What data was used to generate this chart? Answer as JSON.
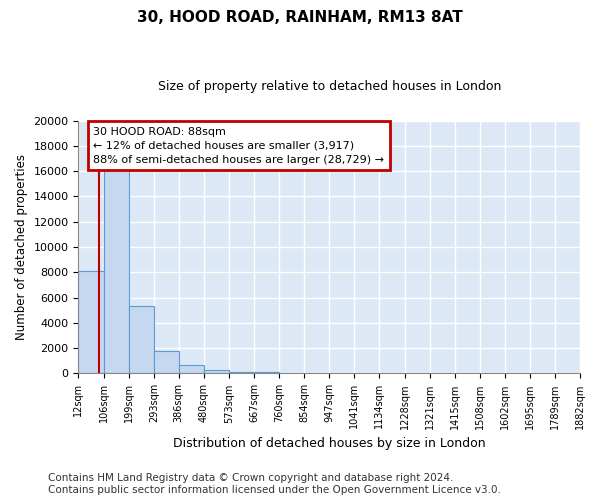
{
  "title": "30, HOOD ROAD, RAINHAM, RM13 8AT",
  "subtitle": "Size of property relative to detached houses in London",
  "xlabel": "Distribution of detached houses by size in London",
  "ylabel": "Number of detached properties",
  "bar_color": "#c5d8f0",
  "bar_edge_color": "#5b9bd5",
  "plot_bg_color": "#dce8f5",
  "fig_bg_color": "#ffffff",
  "grid_color": "#ffffff",
  "vline_color": "#c00000",
  "annotation_text_line1": "30 HOOD ROAD: 88sqm",
  "annotation_text_line2": "← 12% of detached houses are smaller (3,917)",
  "annotation_text_line3": "88% of semi-detached houses are larger (28,729) →",
  "annotation_box_color": "#ffffff",
  "annotation_box_edge": "#c00000",
  "bins": [
    12,
    106,
    199,
    293,
    386,
    480,
    573,
    667,
    760,
    854,
    947,
    1041,
    1134,
    1228,
    1321,
    1415,
    1508,
    1602,
    1695,
    1789,
    1882
  ],
  "counts": [
    8100,
    16500,
    5300,
    1750,
    700,
    300,
    150,
    100,
    0,
    0,
    0,
    0,
    0,
    0,
    0,
    0,
    0,
    0,
    0,
    0
  ],
  "ylim": [
    0,
    20000
  ],
  "yticks": [
    0,
    2000,
    4000,
    6000,
    8000,
    10000,
    12000,
    14000,
    16000,
    18000,
    20000
  ],
  "vline_x": 88,
  "footer": "Contains HM Land Registry data © Crown copyright and database right 2024.\nContains public sector information licensed under the Open Government Licence v3.0.",
  "footer_fontsize": 7.5
}
